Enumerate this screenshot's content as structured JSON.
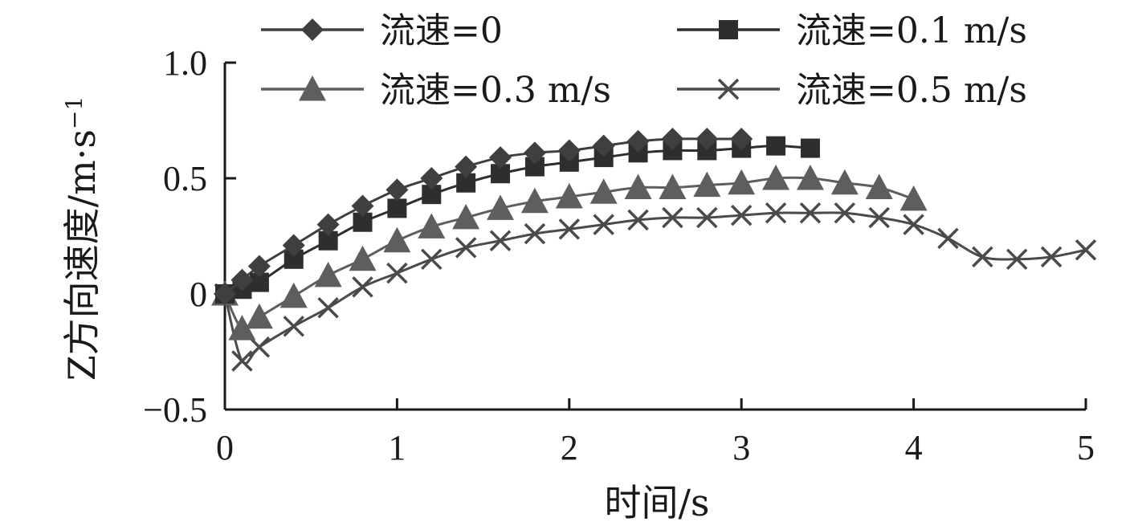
{
  "chart_data": {
    "type": "line",
    "xlabel": "时间/s",
    "ylabel": "Z方向速度/m·s",
    "ylabel_sup": "−1",
    "xlim": [
      0,
      5
    ],
    "ylim": [
      -0.5,
      1.0
    ],
    "xticks": [
      0,
      1,
      2,
      3,
      4,
      5
    ],
    "xtick_labels": [
      "0",
      "1",
      "2",
      "3",
      "4",
      "5"
    ],
    "yticks": [
      -0.5,
      0,
      0.5,
      1.0
    ],
    "ytick_labels": [
      "−0.5",
      "0",
      "0.5",
      "1.0"
    ],
    "grid": false,
    "legend_position": "top",
    "series": [
      {
        "name": "流速=0",
        "marker": "diamond",
        "color": "#3f3f3f",
        "x": [
          0,
          0.1,
          0.2,
          0.4,
          0.6,
          0.8,
          1.0,
          1.2,
          1.4,
          1.6,
          1.8,
          2.0,
          2.2,
          2.4,
          2.6,
          2.8,
          3.0
        ],
        "y": [
          0.0,
          0.06,
          0.12,
          0.21,
          0.3,
          0.38,
          0.45,
          0.5,
          0.55,
          0.59,
          0.61,
          0.62,
          0.64,
          0.66,
          0.67,
          0.67,
          0.67
        ]
      },
      {
        "name": "流速=0.1 m/s",
        "marker": "square",
        "color": "#2e2e2e",
        "x": [
          0,
          0.1,
          0.2,
          0.4,
          0.6,
          0.8,
          1.0,
          1.2,
          1.4,
          1.6,
          1.8,
          2.0,
          2.2,
          2.4,
          2.6,
          2.8,
          3.0,
          3.2,
          3.4
        ],
        "y": [
          0.0,
          0.02,
          0.05,
          0.15,
          0.23,
          0.31,
          0.37,
          0.43,
          0.48,
          0.52,
          0.55,
          0.57,
          0.59,
          0.61,
          0.62,
          0.62,
          0.63,
          0.64,
          0.63
        ]
      },
      {
        "name": "流速=0.3 m/s",
        "marker": "triangle",
        "color": "#5e5e5e",
        "x": [
          0,
          0.1,
          0.2,
          0.4,
          0.6,
          0.8,
          1.0,
          1.2,
          1.4,
          1.6,
          1.8,
          2.0,
          2.2,
          2.4,
          2.6,
          2.8,
          3.0,
          3.2,
          3.4,
          3.6,
          3.8,
          4.0
        ],
        "y": [
          0.0,
          -0.15,
          -0.1,
          -0.01,
          0.08,
          0.15,
          0.23,
          0.29,
          0.33,
          0.37,
          0.4,
          0.42,
          0.44,
          0.46,
          0.46,
          0.47,
          0.48,
          0.5,
          0.5,
          0.48,
          0.46,
          0.41
        ]
      },
      {
        "name": "流速=0.5 m/s",
        "marker": "cross",
        "color": "#4a4a4a",
        "x": [
          0,
          0.1,
          0.2,
          0.4,
          0.6,
          0.8,
          1.0,
          1.2,
          1.4,
          1.6,
          1.8,
          2.0,
          2.2,
          2.4,
          2.6,
          2.8,
          3.0,
          3.2,
          3.4,
          3.6,
          3.8,
          4.0,
          4.2,
          4.4,
          4.6,
          4.8,
          5.0
        ],
        "y": [
          0.0,
          -0.29,
          -0.23,
          -0.14,
          -0.06,
          0.03,
          0.09,
          0.15,
          0.2,
          0.23,
          0.26,
          0.28,
          0.3,
          0.32,
          0.33,
          0.33,
          0.34,
          0.35,
          0.35,
          0.35,
          0.33,
          0.3,
          0.24,
          0.16,
          0.15,
          0.16,
          0.19
        ]
      }
    ]
  }
}
